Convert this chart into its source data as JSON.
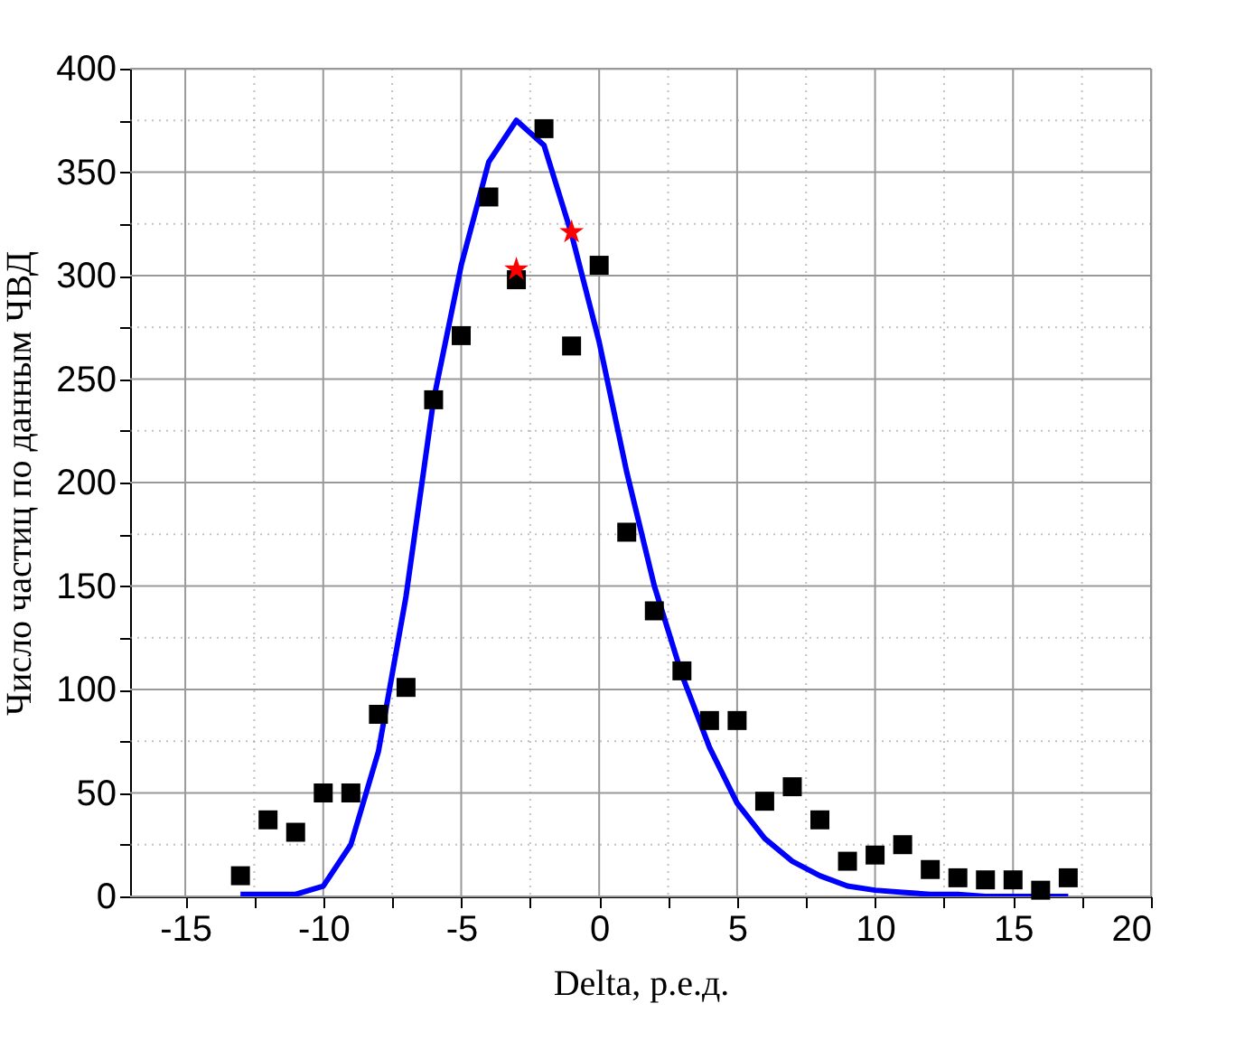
{
  "chart_data": {
    "type": "scatter",
    "xlabel": "Delta, р.е.д.",
    "ylabel": "Число частиц по данным ЧВД",
    "xlim": [
      -17,
      20
    ],
    "ylim": [
      0,
      400
    ],
    "xticks": [
      -15,
      {
        "value": -12.5,
        "label": null
      },
      -10,
      {
        "value": -7.5,
        "label": null
      },
      -5,
      {
        "value": -2.5,
        "label": null
      },
      0,
      {
        "value": 2.5,
        "label": null
      },
      5,
      {
        "value": 7.5,
        "label": null
      },
      10,
      {
        "value": 12.5,
        "label": null
      },
      15,
      {
        "value": 17.5,
        "label": null
      },
      20
    ],
    "yticks": [
      0,
      {
        "value": 25,
        "label": null
      },
      50,
      {
        "value": 75,
        "label": null
      },
      100,
      {
        "value": 125,
        "label": null
      },
      150,
      {
        "value": 175,
        "label": null
      },
      200,
      {
        "value": 225,
        "label": null
      },
      250,
      {
        "value": 275,
        "label": null
      },
      300,
      {
        "value": 325,
        "label": null
      },
      350,
      {
        "value": 375,
        "label": null
      },
      400
    ],
    "grid": true,
    "series": [
      {
        "type": "line",
        "color": "#0000ff",
        "marker": "none",
        "line_style": "solid",
        "x": [
          -13,
          -12,
          -11,
          -10,
          -9,
          -8,
          -7,
          -6,
          -5,
          -4,
          -3,
          -2,
          -1,
          0,
          1,
          2,
          3,
          4,
          5,
          6,
          7,
          8,
          9,
          10,
          11,
          12,
          13,
          14,
          15,
          16,
          17
        ],
        "values": [
          1,
          1,
          1,
          5,
          25,
          70,
          145,
          240,
          305,
          355,
          375,
          363,
          320,
          268,
          205,
          150,
          107,
          72,
          45,
          28,
          17,
          10,
          5,
          3,
          2,
          1,
          1,
          0,
          0,
          0,
          0
        ]
      },
      {
        "color": "#000000",
        "marker": "square",
        "x": [
          -13,
          -12,
          -11,
          -10,
          -9,
          -8,
          -7,
          -6,
          -5,
          -4,
          -3,
          -2,
          -1,
          0,
          1,
          2,
          3,
          4,
          5,
          6,
          7,
          8,
          9,
          10,
          11,
          12,
          13,
          14,
          15,
          16,
          17
        ],
        "values": [
          10,
          37,
          31,
          50,
          50,
          88,
          101,
          240,
          271,
          338,
          298,
          371,
          266,
          305,
          176,
          138,
          109,
          85,
          85,
          46,
          53,
          37,
          17,
          20,
          25,
          13,
          9,
          8,
          8,
          3,
          9
        ]
      },
      {
        "type": "scatter",
        "color": "#ff0000",
        "marker": "star",
        "x": [
          -3,
          -1
        ],
        "values": [
          303,
          321
        ]
      }
    ]
  }
}
